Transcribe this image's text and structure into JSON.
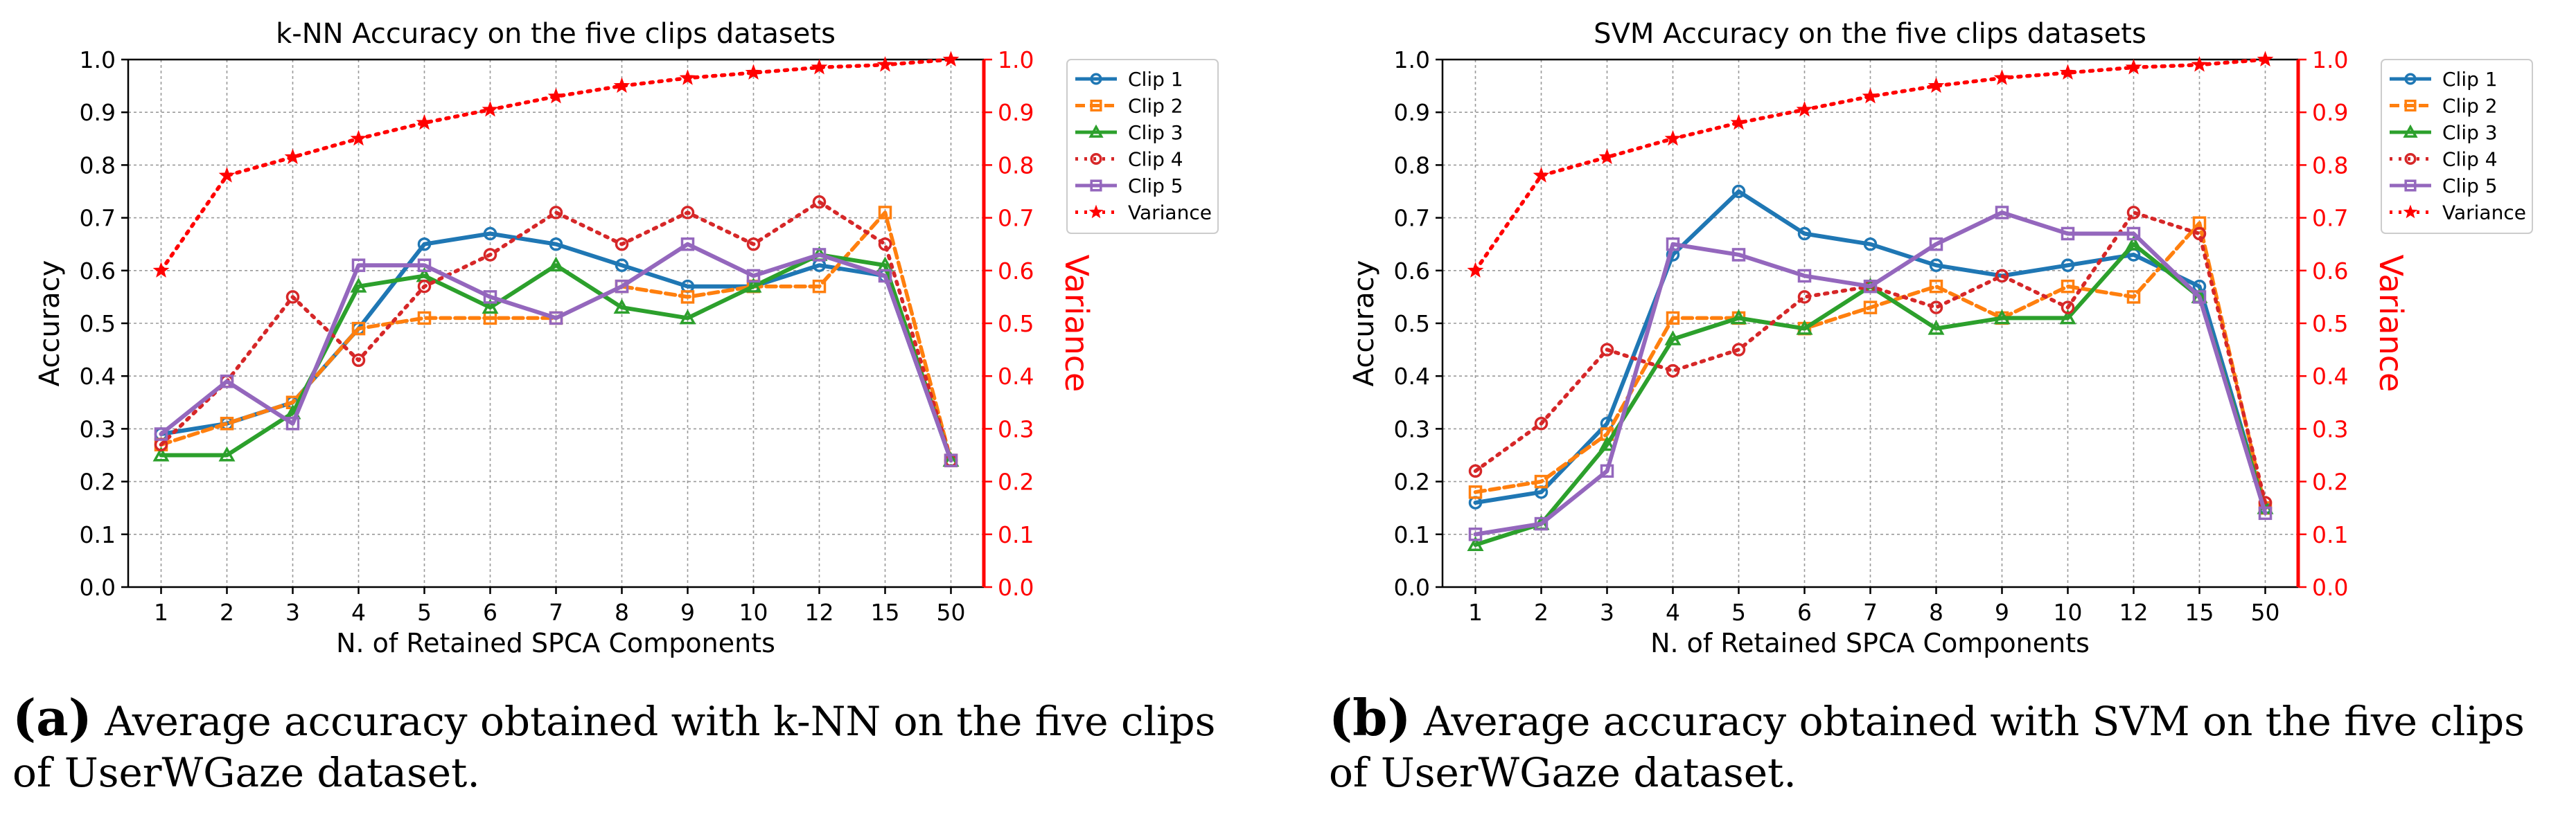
{
  "chart_data": [
    {
      "type": "line",
      "title": "k-NN Accuracy on the five clips datasets",
      "xlabel": "N. of Retained SPCA Components",
      "ylabel": "Accuracy",
      "y2label": "Variance",
      "categories": [
        "1",
        "2",
        "3",
        "4",
        "5",
        "6",
        "7",
        "8",
        "9",
        "10",
        "12",
        "15",
        "50"
      ],
      "ylim": [
        0.0,
        1.0
      ],
      "y2lim": [
        0.0,
        1.0
      ],
      "yticks": [
        "0.0",
        "0.1",
        "0.2",
        "0.3",
        "0.4",
        "0.5",
        "0.6",
        "0.7",
        "0.8",
        "0.9",
        "1.0"
      ],
      "grid": true,
      "legend_position": "top-right",
      "series": [
        {
          "name": "Clip 1",
          "color": "#1f77b4",
          "dash": "solid",
          "marker": "circle",
          "axis": "left",
          "values": [
            0.29,
            0.31,
            0.35,
            0.49,
            0.65,
            0.67,
            0.65,
            0.61,
            0.57,
            0.57,
            0.61,
            0.59,
            0.24
          ]
        },
        {
          "name": "Clip 2",
          "color": "#ff7f0e",
          "dash": "dashed",
          "marker": "square",
          "axis": "left",
          "values": [
            0.27,
            0.31,
            0.35,
            0.49,
            0.51,
            0.51,
            0.51,
            0.57,
            0.55,
            0.57,
            0.57,
            0.71,
            0.24
          ]
        },
        {
          "name": "Clip 3",
          "color": "#2ca02c",
          "dash": "solid",
          "marker": "triangle",
          "axis": "left",
          "values": [
            0.25,
            0.25,
            0.33,
            0.57,
            0.59,
            0.53,
            0.61,
            0.53,
            0.51,
            0.57,
            0.63,
            0.61,
            0.24
          ]
        },
        {
          "name": "Clip 4",
          "color": "#d62728",
          "dash": "dotted",
          "marker": "circle",
          "axis": "left",
          "values": [
            0.27,
            0.39,
            0.55,
            0.43,
            0.57,
            0.63,
            0.71,
            0.65,
            0.71,
            0.65,
            0.73,
            0.65,
            0.24
          ]
        },
        {
          "name": "Clip 5",
          "color": "#9467bd",
          "dash": "solid",
          "marker": "square",
          "axis": "left",
          "values": [
            0.29,
            0.39,
            0.31,
            0.61,
            0.61,
            0.55,
            0.51,
            0.57,
            0.65,
            0.59,
            0.63,
            0.59,
            0.24
          ]
        },
        {
          "name": "Variance",
          "color": "#ff0000",
          "dash": "dotted",
          "marker": "star",
          "axis": "right",
          "values": [
            0.6,
            0.78,
            0.815,
            0.85,
            0.88,
            0.905,
            0.93,
            0.95,
            0.965,
            0.975,
            0.985,
            0.99,
            1.0
          ]
        }
      ]
    },
    {
      "type": "line",
      "title": "SVM Accuracy on the five clips datasets",
      "xlabel": "N. of Retained SPCA Components",
      "ylabel": "Accuracy",
      "y2label": "Variance",
      "categories": [
        "1",
        "2",
        "3",
        "4",
        "5",
        "6",
        "7",
        "8",
        "9",
        "10",
        "12",
        "15",
        "50"
      ],
      "ylim": [
        0.0,
        1.0
      ],
      "y2lim": [
        0.0,
        1.0
      ],
      "yticks": [
        "0.0",
        "0.1",
        "0.2",
        "0.3",
        "0.4",
        "0.5",
        "0.6",
        "0.7",
        "0.8",
        "0.9",
        "1.0"
      ],
      "grid": true,
      "legend_position": "top-right",
      "series": [
        {
          "name": "Clip 1",
          "color": "#1f77b4",
          "dash": "solid",
          "marker": "circle",
          "axis": "left",
          "values": [
            0.16,
            0.18,
            0.31,
            0.63,
            0.75,
            0.67,
            0.65,
            0.61,
            0.59,
            0.61,
            0.63,
            0.57,
            0.15
          ]
        },
        {
          "name": "Clip 2",
          "color": "#ff7f0e",
          "dash": "dashed",
          "marker": "square",
          "axis": "left",
          "values": [
            0.18,
            0.2,
            0.29,
            0.51,
            0.51,
            0.49,
            0.53,
            0.57,
            0.51,
            0.57,
            0.55,
            0.69,
            0.15
          ]
        },
        {
          "name": "Clip 3",
          "color": "#2ca02c",
          "dash": "solid",
          "marker": "triangle",
          "axis": "left",
          "values": [
            0.08,
            0.12,
            0.27,
            0.47,
            0.51,
            0.49,
            0.57,
            0.49,
            0.51,
            0.51,
            0.65,
            0.55,
            0.15
          ]
        },
        {
          "name": "Clip 4",
          "color": "#d62728",
          "dash": "dotted",
          "marker": "circle",
          "axis": "left",
          "values": [
            0.22,
            0.31,
            0.45,
            0.41,
            0.45,
            0.55,
            0.57,
            0.53,
            0.59,
            0.53,
            0.71,
            0.67,
            0.16
          ]
        },
        {
          "name": "Clip 5",
          "color": "#9467bd",
          "dash": "solid",
          "marker": "square",
          "axis": "left",
          "values": [
            0.1,
            0.12,
            0.22,
            0.65,
            0.63,
            0.59,
            0.57,
            0.65,
            0.71,
            0.67,
            0.67,
            0.55,
            0.14
          ]
        },
        {
          "name": "Variance",
          "color": "#ff0000",
          "dash": "dotted",
          "marker": "star",
          "axis": "right",
          "values": [
            0.6,
            0.78,
            0.815,
            0.85,
            0.88,
            0.905,
            0.93,
            0.95,
            0.965,
            0.975,
            0.985,
            0.99,
            1.0
          ]
        }
      ]
    }
  ],
  "captions": [
    {
      "tag": "(a)",
      "text": "Average accuracy obtained with k-NN on the five clips of UserWGaze dataset."
    },
    {
      "tag": "(b)",
      "text": "Average accuracy obtained with SVM on the five clips of UserWGaze dataset."
    }
  ]
}
